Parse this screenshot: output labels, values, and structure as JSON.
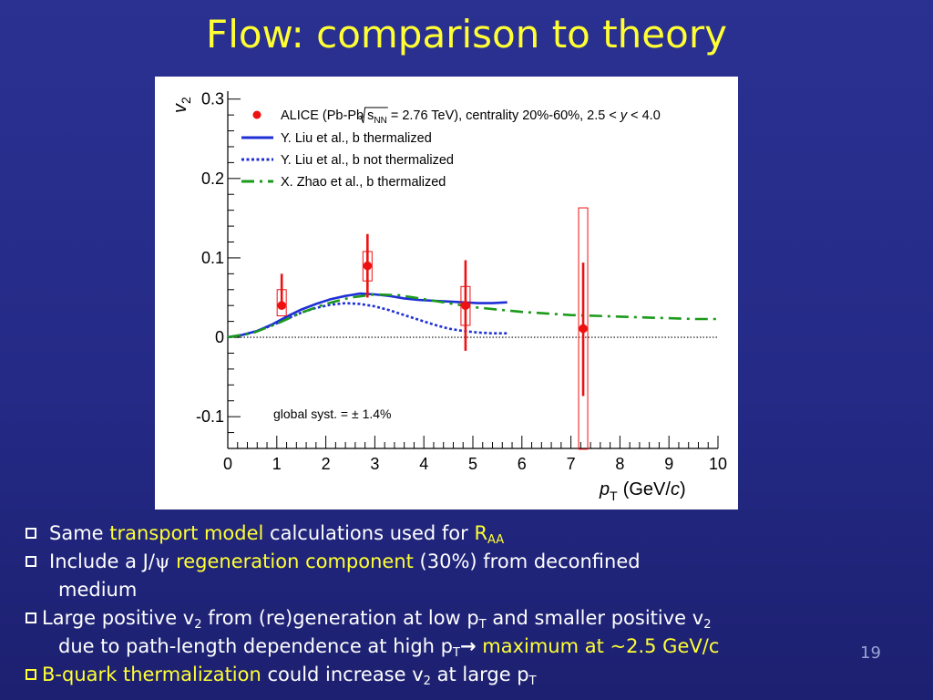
{
  "slide": {
    "title": "Flow: comparison to theory",
    "page_number": "19"
  },
  "bullets": {
    "b1": {
      "pre": "Same ",
      "hl": "transport model",
      "post": " calculations used for ",
      "hl2": "R",
      "sub": "AA"
    },
    "b2": {
      "pre": "Include a J/",
      "psi": "ψ",
      "gap": " ",
      "hl": "regeneration component",
      "post": " (30%) from deconfined",
      "cont": "medium"
    },
    "b3": {
      "t1": "Large positive v",
      "s1": "2",
      "t2": " from (re)generation at low p",
      "s2": "T",
      "t3": " and smaller positive v",
      "s3": "2",
      "l2a": "due to path-length dependence at high p",
      "l2s": "T",
      "arrow": "→",
      "hl": " maximum at ~2.5 GeV/c"
    },
    "b4": {
      "hl": "B-quark thermalization",
      "t1": " could increase v",
      "s1": "2",
      "t2": " at large p",
      "s2": "T"
    }
  },
  "chart_data": {
    "type": "scatter",
    "xlim": [
      0,
      10
    ],
    "ylim": [
      -0.14,
      0.31
    ],
    "xticks": [
      0,
      1,
      2,
      3,
      4,
      5,
      6,
      7,
      8,
      9,
      10
    ],
    "yticks": [
      -0.1,
      0,
      0.1,
      0.2,
      0.3
    ],
    "xtick_labels": [
      "0",
      "1",
      "2",
      "3",
      "4",
      "5",
      "6",
      "7",
      "8",
      "9",
      "10"
    ],
    "ytick_labels": [
      "-0.1",
      "0",
      "0.1",
      "0.2",
      "0.3"
    ],
    "xlabel": {
      "var": "p",
      "sub": "T",
      "unit_pre": "(GeV/",
      "unit_var": "c",
      "unit_post": ")"
    },
    "ylabel": {
      "var": "v",
      "sub": "2"
    },
    "legend_position": "top",
    "legend": {
      "alice": {
        "pre": "ALICE (Pb-Pb ",
        "sqrt": "s",
        "sqrt_sub": "NN",
        "post": " = 2.76 TeV), centrality 20%-60%, 2.5 < ",
        "yvar": "y",
        "end": " < 4.0"
      },
      "liu_therm": "Y. Liu et al., b thermalized",
      "liu_notherm": "Y. Liu et al., b not thermalized",
      "zhao": "X. Zhao et al., b thermalized"
    },
    "annotation": "global syst. = ± 1.4%",
    "data_points": {
      "name": "ALICE",
      "color": "#ee1111",
      "points": [
        {
          "x": 1.1,
          "y": 0.04,
          "stat_lo": 0.04,
          "stat_hi": 0.08,
          "syst_lo": 0.027,
          "syst_hi": 0.06
        },
        {
          "x": 2.85,
          "y": 0.09,
          "stat_lo": 0.05,
          "stat_hi": 0.13,
          "syst_lo": 0.071,
          "syst_hi": 0.108
        },
        {
          "x": 4.85,
          "y": 0.04,
          "stat_lo": -0.017,
          "stat_hi": 0.097,
          "syst_lo": 0.015,
          "syst_hi": 0.064
        },
        {
          "x": 7.25,
          "y": 0.011,
          "stat_lo": -0.074,
          "stat_hi": 0.094,
          "syst_lo": -0.141,
          "syst_hi": 0.163
        }
      ]
    },
    "series": [
      {
        "key": "liu_therm",
        "color": "#1f2fd6",
        "style": "solid",
        "x": [
          0.0,
          0.3,
          0.6,
          0.9,
          1.2,
          1.5,
          1.8,
          2.1,
          2.4,
          2.7,
          3.0,
          3.3,
          3.6,
          3.9,
          4.2,
          4.5,
          4.8,
          5.1,
          5.4,
          5.7
        ],
        "y": [
          0.0,
          0.003,
          0.008,
          0.016,
          0.026,
          0.035,
          0.042,
          0.048,
          0.052,
          0.055,
          0.054,
          0.052,
          0.049,
          0.047,
          0.046,
          0.045,
          0.044,
          0.043,
          0.043,
          0.044
        ]
      },
      {
        "key": "liu_notherm",
        "color": "#1f2fd6",
        "style": "dotted",
        "x": [
          0.0,
          0.3,
          0.6,
          0.9,
          1.2,
          1.5,
          1.8,
          2.1,
          2.4,
          2.7,
          3.0,
          3.3,
          3.6,
          3.9,
          4.2,
          4.5,
          4.8,
          5.1,
          5.4,
          5.7
        ],
        "y": [
          0.0,
          0.003,
          0.008,
          0.015,
          0.023,
          0.031,
          0.037,
          0.041,
          0.043,
          0.042,
          0.039,
          0.034,
          0.028,
          0.022,
          0.016,
          0.011,
          0.008,
          0.006,
          0.005,
          0.005
        ]
      },
      {
        "key": "zhao",
        "color": "#1a9a1a",
        "style": "dashdot",
        "x": [
          0.0,
          0.5,
          1.0,
          1.5,
          2.0,
          2.5,
          3.0,
          3.5,
          4.0,
          4.5,
          5.0,
          5.5,
          6.0,
          6.5,
          7.0,
          7.5,
          8.0,
          8.5,
          9.0,
          9.5,
          10.0
        ],
        "y": [
          0.0,
          0.005,
          0.017,
          0.031,
          0.042,
          0.05,
          0.054,
          0.053,
          0.048,
          0.043,
          0.038,
          0.035,
          0.032,
          0.03,
          0.028,
          0.027,
          0.026,
          0.025,
          0.024,
          0.023,
          0.023
        ]
      }
    ]
  }
}
